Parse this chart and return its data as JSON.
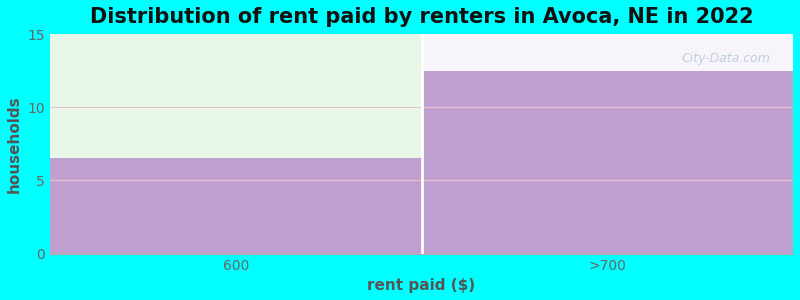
{
  "title": "Distribution of rent paid by renters in Avoca, NE in 2022",
  "categories": [
    "600",
    ">700"
  ],
  "values": [
    6.5,
    12.5
  ],
  "bar_color": "#c0a0d0",
  "background_color": "#00ffff",
  "plot_bg_top_left": "#e8f8e8",
  "plot_bg_top_right": "#f5f0f8",
  "xlabel": "rent paid ($)",
  "ylabel": "households",
  "ylim": [
    0,
    15
  ],
  "yticks": [
    0,
    5,
    10,
    15
  ],
  "grid_color": "#e8c0c8",
  "title_fontsize": 15,
  "axis_label_fontsize": 11,
  "tick_fontsize": 10,
  "watermark": "City-Data.com"
}
